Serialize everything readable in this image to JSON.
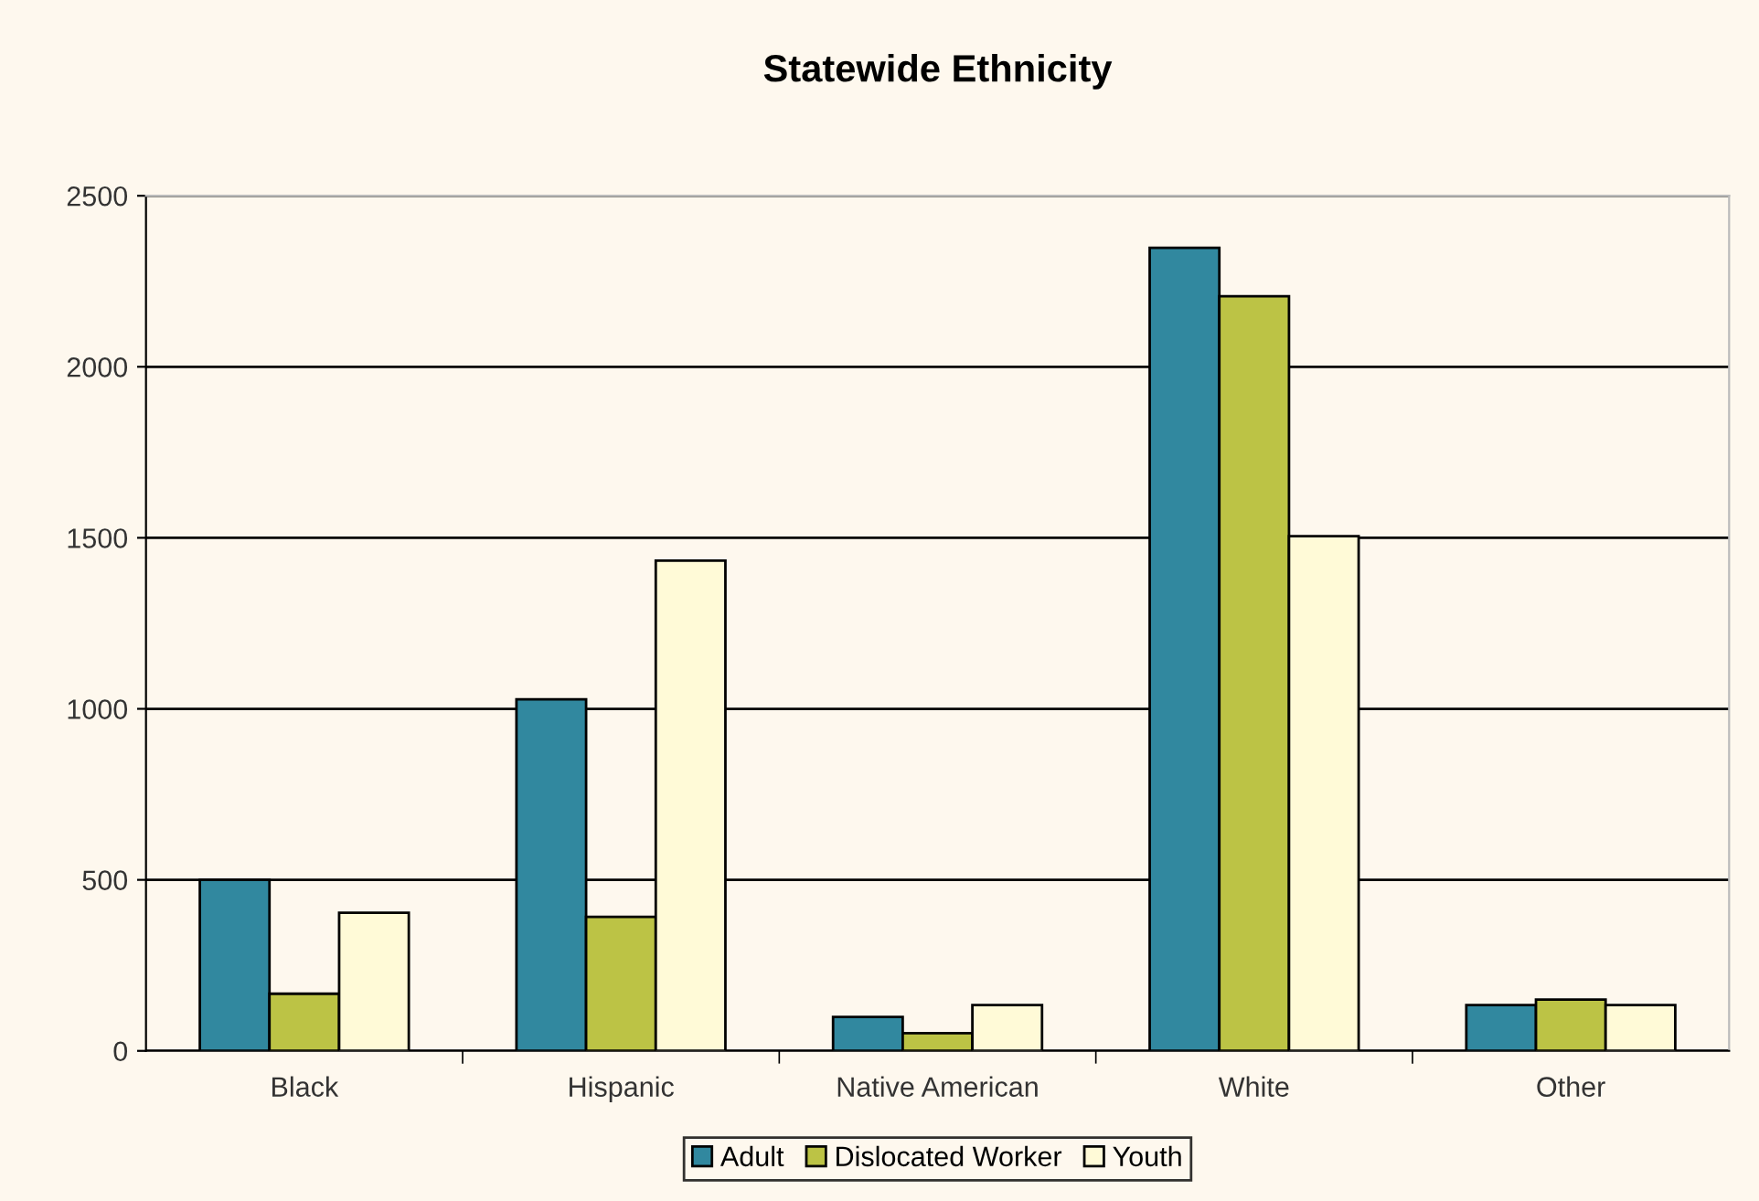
{
  "chart_data": {
    "type": "bar",
    "title": "Statewide Ethnicity",
    "categories": [
      "Black",
      "Hispanic",
      "Native American",
      "White",
      "Other"
    ],
    "series": [
      {
        "name": "Adult",
        "color": "#31889f",
        "values": [
          500,
          1028,
          99,
          2348,
          134
        ]
      },
      {
        "name": "Dislocated Worker",
        "color": "#bcc345",
        "values": [
          167,
          392,
          52,
          2206,
          150
        ]
      },
      {
        "name": "Youth",
        "color": "#fffad7",
        "values": [
          404,
          1433,
          134,
          1505,
          134
        ]
      }
    ],
    "ylim": [
      0,
      2500
    ],
    "yticks": [
      0,
      500,
      1000,
      1500,
      2000,
      2500
    ],
    "grid": "y",
    "legend": "bottom"
  }
}
